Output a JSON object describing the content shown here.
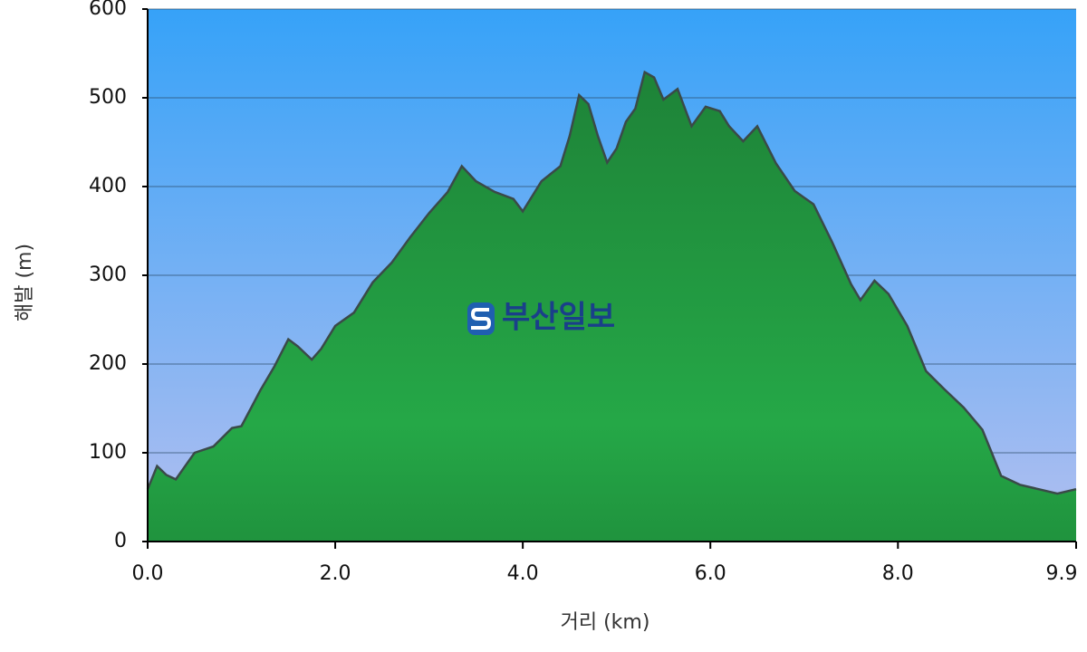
{
  "chart_data": {
    "type": "area",
    "watermark": "부산일보",
    "xlabel": "거리 (km)",
    "ylabel": "해발 (m)",
    "x": [
      0,
      0.1,
      0.2,
      0.3,
      0.4,
      0.5,
      0.7,
      0.9,
      1.0,
      1.1,
      1.2,
      1.35,
      1.5,
      1.6,
      1.75,
      1.85,
      2.0,
      2.2,
      2.4,
      2.6,
      2.8,
      3.0,
      3.2,
      3.35,
      3.5,
      3.7,
      3.9,
      4.0,
      4.2,
      4.4,
      4.5,
      4.6,
      4.7,
      4.8,
      4.9,
      5.0,
      5.1,
      5.2,
      5.3,
      5.4,
      5.5,
      5.65,
      5.8,
      5.95,
      6.1,
      6.2,
      6.35,
      6.5,
      6.7,
      6.9,
      7.1,
      7.3,
      7.5,
      7.6,
      7.75,
      7.9,
      8.1,
      8.3,
      8.5,
      8.7,
      8.9,
      9.1,
      9.3,
      9.5,
      9.7,
      9.9
    ],
    "values": [
      59,
      85,
      75,
      70,
      85,
      100,
      107,
      128,
      130,
      150,
      170,
      197,
      228,
      220,
      205,
      217,
      243,
      258,
      292,
      314,
      343,
      370,
      394,
      423,
      406,
      394,
      386,
      372,
      406,
      423,
      457,
      503,
      493,
      457,
      427,
      443,
      473,
      488,
      529,
      523,
      498,
      510,
      468,
      490,
      485,
      468,
      451,
      468,
      426,
      395,
      380,
      337,
      290,
      272,
      294,
      279,
      243,
      192,
      171,
      151,
      126,
      74,
      64,
      59,
      54,
      59
    ],
    "color": "#22a043",
    "xlim": [
      0,
      9.9
    ],
    "ylim": [
      0,
      600
    ],
    "xticks": [
      {
        "value": 0,
        "label": "0.0"
      },
      {
        "value": 2,
        "label": "2.0"
      },
      {
        "value": 4,
        "label": "4.0"
      },
      {
        "value": 6,
        "label": "6.0"
      },
      {
        "value": 8,
        "label": "8.0"
      },
      9.9
    ],
    "yticks": [
      0,
      100,
      200,
      300,
      400,
      500,
      600
    ],
    "grid": true
  }
}
